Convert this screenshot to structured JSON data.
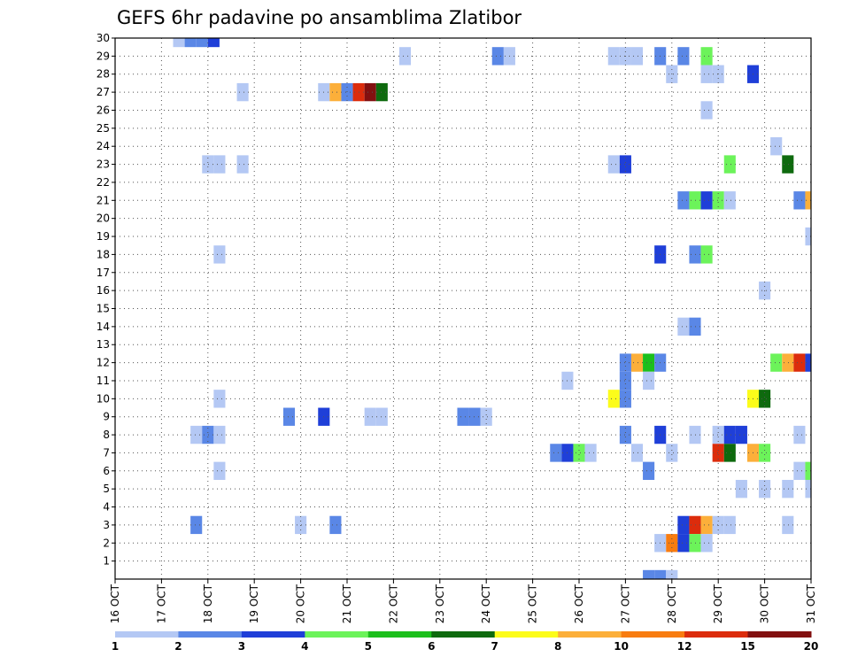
{
  "chart_data": {
    "type": "heatmap",
    "title": "GEFS 6hr padavine po ansamblima Zlatibor",
    "xlabel": "",
    "ylabel": "",
    "x_unit": "6h step from 16 OCT",
    "x_range": [
      0,
      60
    ],
    "x_ticks": [
      {
        "step": 0,
        "label": "16 OCT"
      },
      {
        "step": 4,
        "label": "17 OCT"
      },
      {
        "step": 8,
        "label": "18 OCT"
      },
      {
        "step": 12,
        "label": "19 OCT"
      },
      {
        "step": 16,
        "label": "20 OCT"
      },
      {
        "step": 20,
        "label": "21 OCT"
      },
      {
        "step": 24,
        "label": "22 OCT"
      },
      {
        "step": 28,
        "label": "23 OCT"
      },
      {
        "step": 32,
        "label": "24 OCT"
      },
      {
        "step": 36,
        "label": "25 OCT"
      },
      {
        "step": 40,
        "label": "26 OCT"
      },
      {
        "step": 44,
        "label": "27 OCT"
      },
      {
        "step": 48,
        "label": "28 OCT"
      },
      {
        "step": 52,
        "label": "29 OCT"
      },
      {
        "step": 56,
        "label": "30 OCT"
      },
      {
        "step": 60,
        "label": "31 OCT"
      }
    ],
    "y_range": [
      0,
      30
    ],
    "y_ticks": [
      1,
      2,
      3,
      4,
      5,
      6,
      7,
      8,
      9,
      10,
      11,
      12,
      13,
      14,
      15,
      16,
      17,
      18,
      19,
      20,
      21,
      22,
      23,
      24,
      25,
      26,
      27,
      28,
      29,
      30
    ],
    "grid": true,
    "colorbar": {
      "labels": [
        "1",
        "2",
        "3",
        "4",
        "5",
        "6",
        "7",
        "8",
        "10",
        "12",
        "15",
        "20"
      ],
      "colors": [
        "#b4c8f4",
        "#5a87e6",
        "#1f3fd8",
        "#6cf35a",
        "#1cbf1c",
        "#0e6a0e",
        "#fcfc1a",
        "#fcaf3a",
        "#f87c10",
        "#dc2c0c",
        "#821010"
      ]
    },
    "cells": [
      {
        "t": 5.5,
        "m": 30,
        "v": 1
      },
      {
        "t": 6.5,
        "m": 30,
        "v": 2
      },
      {
        "t": 7.5,
        "m": 30,
        "v": 2
      },
      {
        "t": 8.5,
        "m": 30,
        "v": 3
      },
      {
        "t": 25,
        "m": 29,
        "v": 1
      },
      {
        "t": 33,
        "m": 29,
        "v": 2
      },
      {
        "t": 34,
        "m": 29,
        "v": 1
      },
      {
        "t": 43,
        "m": 29,
        "v": 1
      },
      {
        "t": 44,
        "m": 29,
        "v": 1
      },
      {
        "t": 45,
        "m": 29,
        "v": 1
      },
      {
        "t": 47,
        "m": 29,
        "v": 2
      },
      {
        "t": 49,
        "m": 29,
        "v": 2
      },
      {
        "t": 51,
        "m": 29,
        "v": 4
      },
      {
        "t": 48,
        "m": 28,
        "v": 1
      },
      {
        "t": 51,
        "m": 28,
        "v": 1
      },
      {
        "t": 52,
        "m": 28,
        "v": 1
      },
      {
        "t": 55,
        "m": 28,
        "v": 3
      },
      {
        "t": 11,
        "m": 27,
        "v": 1
      },
      {
        "t": 18,
        "m": 27,
        "v": 1
      },
      {
        "t": 19,
        "m": 27,
        "v": 8
      },
      {
        "t": 20,
        "m": 27,
        "v": 2
      },
      {
        "t": 21,
        "m": 27,
        "v": 12
      },
      {
        "t": 22,
        "m": 27,
        "v": 15
      },
      {
        "t": 23,
        "m": 27,
        "v": 6
      },
      {
        "t": 51,
        "m": 26,
        "v": 1
      },
      {
        "t": 57,
        "m": 24,
        "v": 1
      },
      {
        "t": 8,
        "m": 23,
        "v": 1
      },
      {
        "t": 9,
        "m": 23,
        "v": 1
      },
      {
        "t": 11,
        "m": 23,
        "v": 1
      },
      {
        "t": 43,
        "m": 23,
        "v": 1
      },
      {
        "t": 44,
        "m": 23,
        "v": 3
      },
      {
        "t": 53,
        "m": 23,
        "v": 4
      },
      {
        "t": 58,
        "m": 23,
        "v": 6
      },
      {
        "t": 49,
        "m": 21,
        "v": 2
      },
      {
        "t": 50,
        "m": 21,
        "v": 4
      },
      {
        "t": 51,
        "m": 21,
        "v": 3
      },
      {
        "t": 52,
        "m": 21,
        "v": 4
      },
      {
        "t": 53,
        "m": 21,
        "v": 1
      },
      {
        "t": 59,
        "m": 21,
        "v": 2
      },
      {
        "t": 60,
        "m": 21,
        "v": 8
      },
      {
        "t": 60,
        "m": 19,
        "v": 1
      },
      {
        "t": 47,
        "m": 18,
        "v": 3
      },
      {
        "t": 9,
        "m": 18,
        "v": 1
      },
      {
        "t": 50,
        "m": 18,
        "v": 2
      },
      {
        "t": 51,
        "m": 18,
        "v": 4
      },
      {
        "t": 56,
        "m": 16,
        "v": 1
      },
      {
        "t": 49,
        "m": 14,
        "v": 1
      },
      {
        "t": 50,
        "m": 14,
        "v": 2
      },
      {
        "t": 44,
        "m": 12,
        "v": 2
      },
      {
        "t": 45,
        "m": 12,
        "v": 8
      },
      {
        "t": 46,
        "m": 12,
        "v": 5
      },
      {
        "t": 47,
        "m": 12,
        "v": 2
      },
      {
        "t": 57,
        "m": 12,
        "v": 4
      },
      {
        "t": 58,
        "m": 12,
        "v": 8
      },
      {
        "t": 59,
        "m": 12,
        "v": 12
      },
      {
        "t": 60,
        "m": 12,
        "v": 3
      },
      {
        "t": 44,
        "m": 11,
        "v": 2
      },
      {
        "t": 46,
        "m": 11,
        "v": 1
      },
      {
        "t": 39,
        "m": 11,
        "v": 1
      },
      {
        "t": 43,
        "m": 10,
        "v": 7
      },
      {
        "t": 44,
        "m": 10,
        "v": 2
      },
      {
        "t": 55,
        "m": 10,
        "v": 7
      },
      {
        "t": 56,
        "m": 10,
        "v": 6
      },
      {
        "t": 9,
        "m": 10,
        "v": 1
      },
      {
        "t": 15,
        "m": 9,
        "v": 2
      },
      {
        "t": 18,
        "m": 9,
        "v": 3
      },
      {
        "t": 22,
        "m": 9,
        "v": 1
      },
      {
        "t": 23,
        "m": 9,
        "v": 1
      },
      {
        "t": 30,
        "m": 9,
        "v": 2
      },
      {
        "t": 31,
        "m": 9,
        "v": 2
      },
      {
        "t": 32,
        "m": 9,
        "v": 1
      },
      {
        "t": 7,
        "m": 8,
        "v": 1
      },
      {
        "t": 8,
        "m": 8,
        "v": 2
      },
      {
        "t": 9,
        "m": 8,
        "v": 1
      },
      {
        "t": 44,
        "m": 8,
        "v": 2
      },
      {
        "t": 47,
        "m": 8,
        "v": 3
      },
      {
        "t": 50,
        "m": 8,
        "v": 1
      },
      {
        "t": 52,
        "m": 8,
        "v": 1
      },
      {
        "t": 53,
        "m": 8,
        "v": 3
      },
      {
        "t": 54,
        "m": 8,
        "v": 3
      },
      {
        "t": 59,
        "m": 8,
        "v": 1
      },
      {
        "t": 38,
        "m": 7,
        "v": 2
      },
      {
        "t": 39,
        "m": 7,
        "v": 3
      },
      {
        "t": 40,
        "m": 7,
        "v": 4
      },
      {
        "t": 41,
        "m": 7,
        "v": 1
      },
      {
        "t": 45,
        "m": 7,
        "v": 1
      },
      {
        "t": 48,
        "m": 7,
        "v": 1
      },
      {
        "t": 52,
        "m": 7,
        "v": 12
      },
      {
        "t": 53,
        "m": 7,
        "v": 6
      },
      {
        "t": 55,
        "m": 7,
        "v": 8
      },
      {
        "t": 56,
        "m": 7,
        "v": 4
      },
      {
        "t": 9,
        "m": 6,
        "v": 1
      },
      {
        "t": 46,
        "m": 6,
        "v": 2
      },
      {
        "t": 59,
        "m": 6,
        "v": 1
      },
      {
        "t": 60,
        "m": 6,
        "v": 4
      },
      {
        "t": 54,
        "m": 5,
        "v": 1
      },
      {
        "t": 56,
        "m": 5,
        "v": 1
      },
      {
        "t": 58,
        "m": 5,
        "v": 1
      },
      {
        "t": 60,
        "m": 5,
        "v": 1
      },
      {
        "t": 7,
        "m": 3,
        "v": 2
      },
      {
        "t": 16,
        "m": 3,
        "v": 1
      },
      {
        "t": 19,
        "m": 3,
        "v": 2
      },
      {
        "t": 49,
        "m": 3,
        "v": 3
      },
      {
        "t": 50,
        "m": 3,
        "v": 12
      },
      {
        "t": 51,
        "m": 3,
        "v": 8
      },
      {
        "t": 52,
        "m": 3,
        "v": 1
      },
      {
        "t": 53,
        "m": 3,
        "v": 1
      },
      {
        "t": 58,
        "m": 3,
        "v": 1
      },
      {
        "t": 47,
        "m": 2,
        "v": 1
      },
      {
        "t": 48,
        "m": 2,
        "v": 10
      },
      {
        "t": 49,
        "m": 2,
        "v": 3
      },
      {
        "t": 50,
        "m": 2,
        "v": 4
      },
      {
        "t": 51,
        "m": 2,
        "v": 1
      },
      {
        "t": 46,
        "m": 0,
        "v": 2
      },
      {
        "t": 47,
        "m": 0,
        "v": 2
      },
      {
        "t": 48,
        "m": 0,
        "v": 1
      }
    ]
  }
}
